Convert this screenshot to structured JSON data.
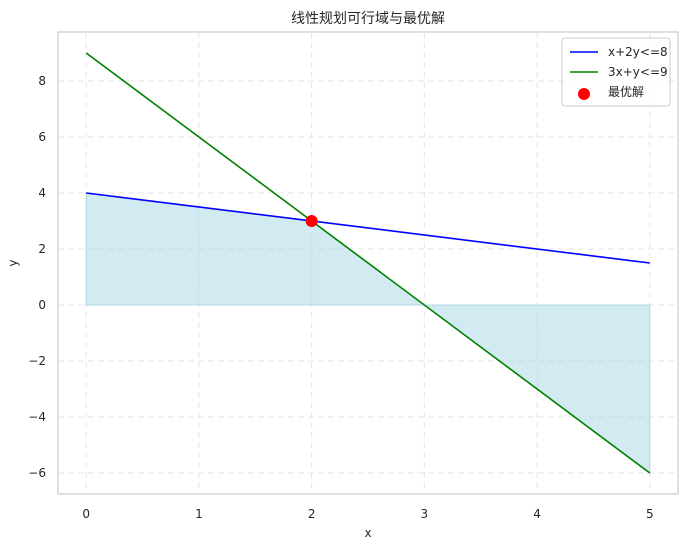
{
  "chart_data": {
    "type": "line",
    "title": "线性规划可行域与最优解",
    "xlabel": "x",
    "ylabel": "y",
    "xlim": [
      -0.25,
      5.25
    ],
    "ylim": [
      -6.75,
      9.75
    ],
    "xticks": [
      0,
      1,
      2,
      3,
      4,
      5
    ],
    "yticks": [
      -6,
      -4,
      -2,
      0,
      2,
      4,
      6,
      8
    ],
    "grid": true,
    "legend_position": "top-right",
    "series": [
      {
        "name": "x+2y<=8",
        "type": "line",
        "color": "#0000ff",
        "x": [
          0,
          5
        ],
        "y": [
          4,
          1.5
        ]
      },
      {
        "name": "3x+y<=9",
        "type": "line",
        "color": "#008000",
        "x": [
          0,
          5
        ],
        "y": [
          9,
          -6
        ]
      }
    ],
    "feasible_region": {
      "color": "#add8e6",
      "x": [
        0,
        2,
        3,
        5
      ],
      "y_upper": [
        4,
        3,
        0,
        -6
      ],
      "y_lower": [
        0,
        0,
        0,
        0
      ]
    },
    "points": [
      {
        "name": "最优解",
        "type": "scatter",
        "color": "#ff0000",
        "x": 2,
        "y": 3
      }
    ]
  }
}
